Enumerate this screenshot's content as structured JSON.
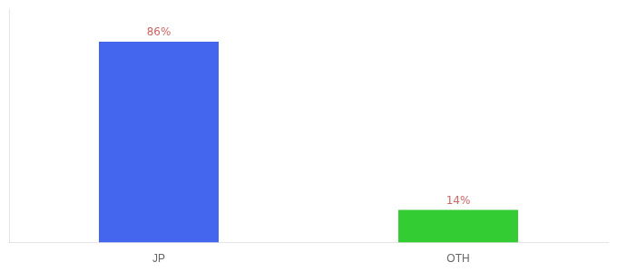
{
  "chart_data": {
    "type": "bar",
    "categories": [
      "JP",
      "OTH"
    ],
    "values": [
      86,
      14
    ],
    "value_labels": [
      "86%",
      "14%"
    ],
    "colors": [
      "#4466ee",
      "#33cc33"
    ],
    "ylim": [
      0,
      100
    ],
    "grid": false,
    "data_labels": true,
    "tick_labels": "x"
  }
}
